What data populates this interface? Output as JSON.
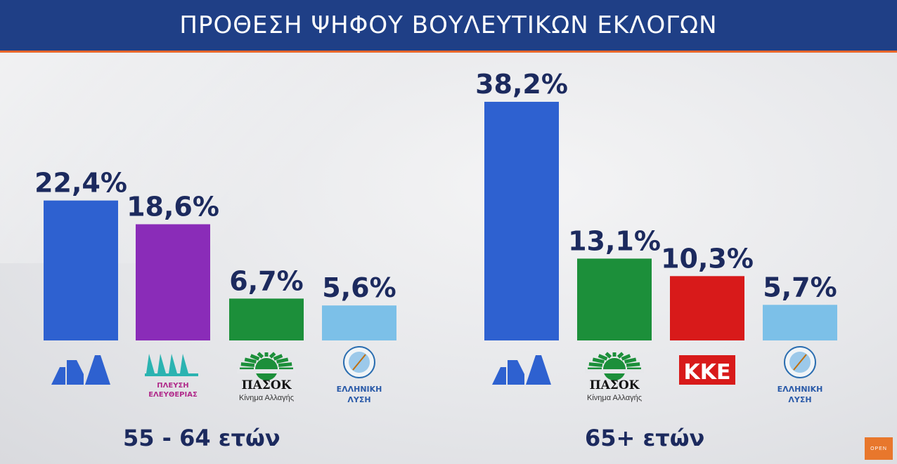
{
  "header": {
    "title": "ΠΡΟΘΕΣΗ ΨΗΦΟΥ ΒΟΥΛΕΥΤΙΚΩΝ ΕΚΛΟΓΩΝ"
  },
  "brand": {
    "label": "OPEN"
  },
  "colors": {
    "header_bg": "#1f3f86",
    "header_accent": "#e8672b",
    "value_text": "#1c2a5e",
    "nd": "#2e61d0",
    "ple": "#8a2cb8",
    "pasok": "#1c8f3a",
    "kke": "#d81a1a",
    "el": "#7cc0e8"
  },
  "chart_data": [
    {
      "type": "bar",
      "group_label": "55 - 64 ετών",
      "ylim": [
        0,
        40
      ],
      "bars": [
        {
          "party": "nd",
          "value": 22.4,
          "value_label": "22,4%",
          "color": "#2e61d0",
          "logo_text": []
        },
        {
          "party": "ple",
          "value": 18.6,
          "value_label": "18,6%",
          "color": "#8a2cb8",
          "logo_text": [
            "ΠΛΕΥΣΗ",
            "ΕΛΕΥΘΕΡΙΑΣ"
          ]
        },
        {
          "party": "pasok",
          "value": 6.7,
          "value_label": "6,7%",
          "color": "#1c8f3a",
          "logo_text": [
            "ΠΑΣΟΚ",
            "Κίνημα Αλλαγής"
          ]
        },
        {
          "party": "el",
          "value": 5.6,
          "value_label": "5,6%",
          "color": "#7cc0e8",
          "logo_text": [
            "ΕΛΛΗΝΙΚΗ",
            "ΛΥΣΗ"
          ]
        }
      ]
    },
    {
      "type": "bar",
      "group_label": "65+ ετών",
      "ylim": [
        0,
        40
      ],
      "bars": [
        {
          "party": "nd",
          "value": 38.2,
          "value_label": "38,2%",
          "color": "#2e61d0",
          "logo_text": []
        },
        {
          "party": "pasok",
          "value": 13.1,
          "value_label": "13,1%",
          "color": "#1c8f3a",
          "logo_text": [
            "ΠΑΣΟΚ",
            "Κίνημα Αλλαγής"
          ]
        },
        {
          "party": "kke",
          "value": 10.3,
          "value_label": "10,3%",
          "color": "#d81a1a",
          "logo_text": [
            "ΚΚΕ"
          ]
        },
        {
          "party": "el",
          "value": 5.7,
          "value_label": "5,7%",
          "color": "#7cc0e8",
          "logo_text": [
            "ΕΛΛΗΝΙΚΗ",
            "ΛΥΣΗ"
          ]
        }
      ]
    }
  ]
}
